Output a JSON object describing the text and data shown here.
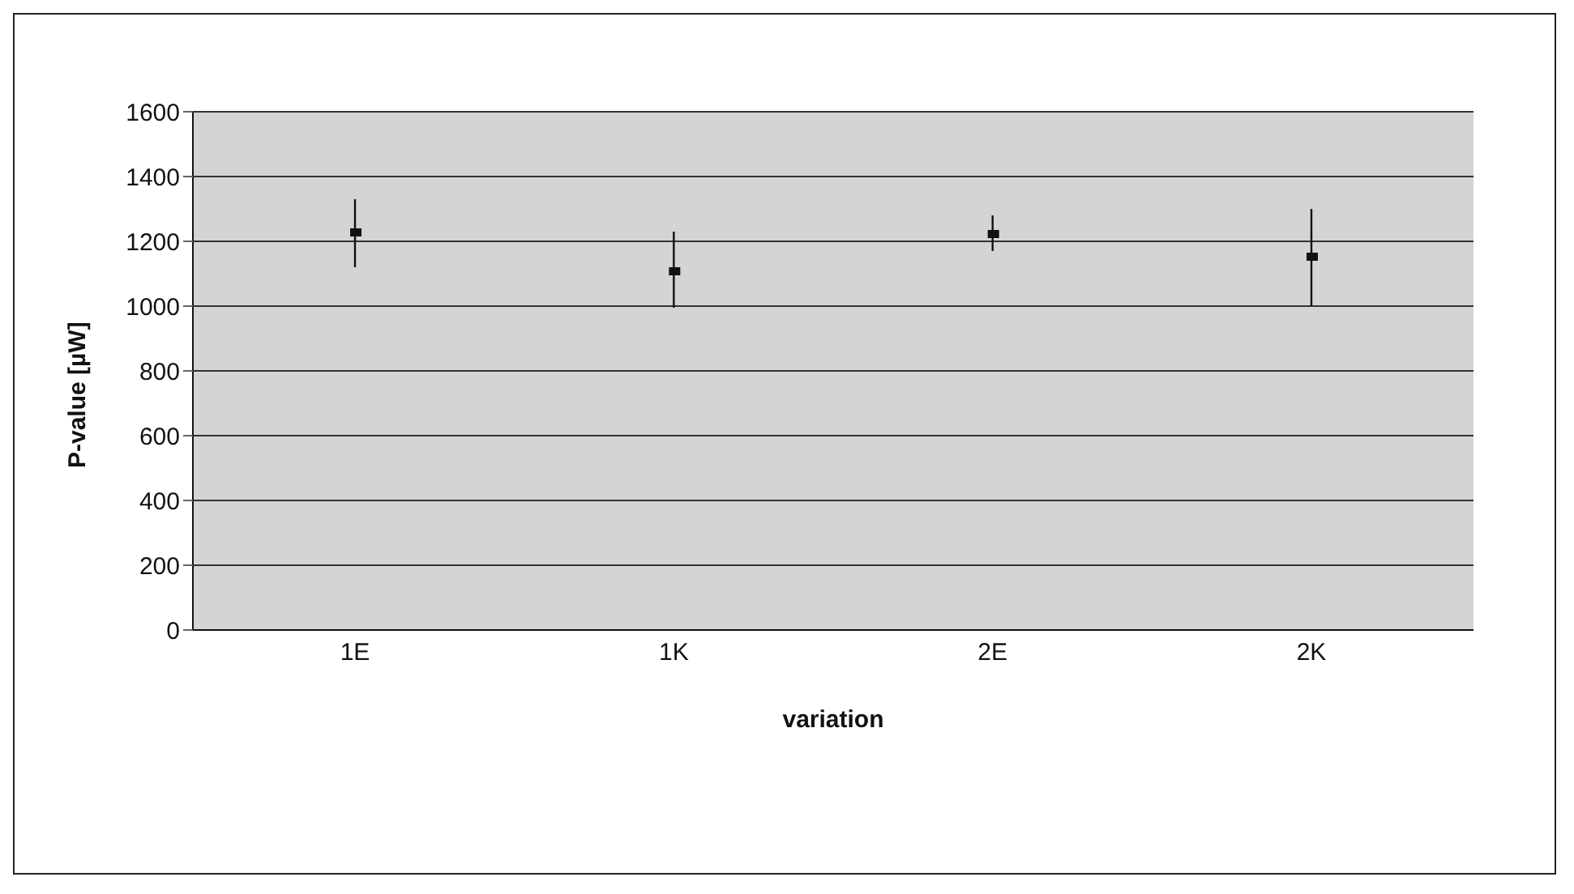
{
  "chart_data": {
    "type": "scatter",
    "xlabel": "variation",
    "ylabel": "P-value [µW]",
    "categories": [
      "1E",
      "1K",
      "2E",
      "2K"
    ],
    "values": [
      1230,
      1110,
      1225,
      1155
    ],
    "errors": [
      [
        1120,
        1330
      ],
      [
        995,
        1230
      ],
      [
        1170,
        1280
      ],
      [
        1000,
        1300
      ]
    ],
    "color": "#111111",
    "marker": "square",
    "ylim": [
      0,
      1600
    ],
    "yticks": [
      0,
      200,
      400,
      600,
      800,
      1000,
      1200,
      1400,
      1600
    ],
    "grid": "y",
    "legend": false
  }
}
